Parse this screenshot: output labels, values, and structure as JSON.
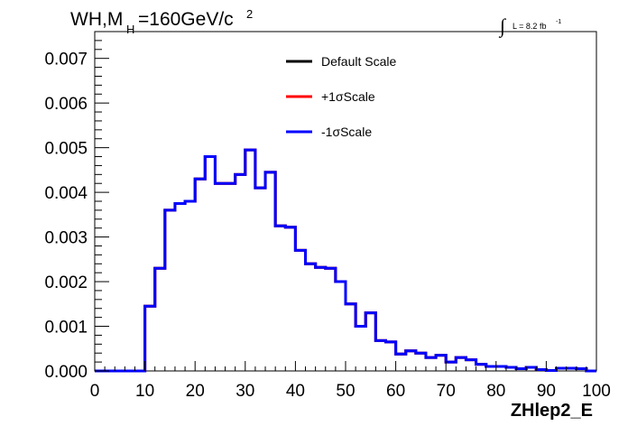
{
  "chart_data": {
    "type": "step-histogram",
    "title_parts": {
      "prefix": "WH,M",
      "subscript": "H",
      "mid": "=160GeV/c",
      "superscript": "2"
    },
    "lumi": {
      "integral_symbol": "∫",
      "text": "L = 8.2 fb",
      "superscript": "-1"
    },
    "xlabel": "ZHlep2_E",
    "ylabel": "",
    "xlim": [
      0,
      100
    ],
    "ylim": [
      0,
      0.0076
    ],
    "x_ticks": [
      0,
      10,
      20,
      30,
      40,
      50,
      60,
      70,
      80,
      90,
      100
    ],
    "x_tick_labels": [
      "0",
      "10",
      "20",
      "30",
      "40",
      "50",
      "60",
      "70",
      "80",
      "90",
      "100"
    ],
    "y_ticks": [
      0,
      0.001,
      0.002,
      0.003,
      0.004,
      0.005,
      0.006,
      0.007
    ],
    "y_tick_labels": [
      "0.000",
      "0.001",
      "0.002",
      "0.003",
      "0.004",
      "0.005",
      "0.006",
      "0.007"
    ],
    "bin_width": 2,
    "bin_edges_start": 0,
    "legend": {
      "position": "top-center",
      "entries": [
        {
          "label": "Default Scale",
          "color": "#000000"
        },
        {
          "label": "+1σScale",
          "color": "#ff0000"
        },
        {
          "label": "-1σScale",
          "color": "#0000ff"
        }
      ]
    },
    "series": [
      {
        "name": "Default Scale",
        "color": "#000000",
        "values": [
          0,
          0,
          0,
          0,
          0,
          0.00145,
          0.0023,
          0.0036,
          0.00375,
          0.0038,
          0.0043,
          0.0048,
          0.0042,
          0.0042,
          0.0044,
          0.00495,
          0.0041,
          0.00445,
          0.00325,
          0.00322,
          0.0027,
          0.0024,
          0.00232,
          0.0023,
          0.002,
          0.0015,
          0.001,
          0.0013,
          0.00068,
          0.00065,
          0.00038,
          0.00045,
          0.0004,
          0.0003,
          0.00035,
          0.0002,
          0.0003,
          0.00025,
          0.00015,
          0.0001,
          0.0001,
          8e-05,
          5e-05,
          8e-05,
          3e-05,
          1e-05,
          6e-05,
          6e-05,
          5e-05,
          0
        ]
      },
      {
        "name": "+1σScale",
        "color": "#ff0000",
        "values": [
          0,
          0,
          0,
          0,
          0,
          0.00145,
          0.0023,
          0.0036,
          0.00375,
          0.0038,
          0.0043,
          0.0048,
          0.0042,
          0.0042,
          0.0044,
          0.00495,
          0.0041,
          0.00445,
          0.00325,
          0.00322,
          0.0027,
          0.0024,
          0.00232,
          0.0023,
          0.002,
          0.0015,
          0.001,
          0.0013,
          0.00068,
          0.00065,
          0.00038,
          0.00045,
          0.0004,
          0.0003,
          0.00035,
          0.0002,
          0.0003,
          0.00025,
          0.00015,
          0.0001,
          0.0001,
          8e-05,
          5e-05,
          8e-05,
          3e-05,
          1e-05,
          6e-05,
          6e-05,
          5e-05,
          0
        ]
      },
      {
        "name": "-1σScale",
        "color": "#0000ff",
        "values": [
          0,
          0,
          0,
          0,
          0,
          0.00145,
          0.0023,
          0.0036,
          0.00375,
          0.0038,
          0.0043,
          0.0048,
          0.0042,
          0.0042,
          0.0044,
          0.00495,
          0.0041,
          0.00445,
          0.00325,
          0.00322,
          0.0027,
          0.0024,
          0.00232,
          0.0023,
          0.002,
          0.0015,
          0.001,
          0.0013,
          0.00068,
          0.00065,
          0.00038,
          0.00045,
          0.0004,
          0.0003,
          0.00035,
          0.0002,
          0.0003,
          0.00025,
          0.00015,
          0.0001,
          0.0001,
          8e-05,
          5e-05,
          8e-05,
          3e-05,
          1e-05,
          6e-05,
          6e-05,
          5e-05,
          0
        ]
      }
    ]
  }
}
